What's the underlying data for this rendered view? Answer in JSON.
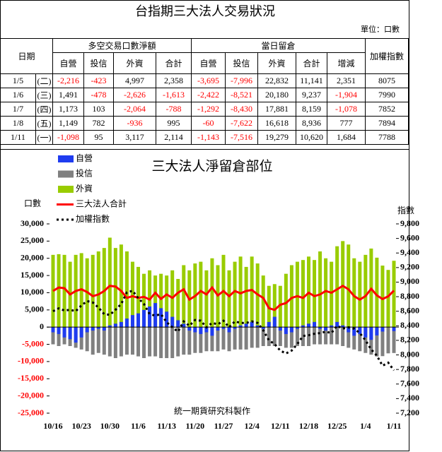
{
  "table": {
    "title": "台指期三大法人交易狀況",
    "unit": "單位：口數",
    "date_header": "日期",
    "group1": "多空交易口數淨額",
    "group2": "當日留倉",
    "index_header": "加權指數",
    "sub1": [
      "自營",
      "投信",
      "外資",
      "合計"
    ],
    "sub2": [
      "自營",
      "投信",
      "外資",
      "合計",
      "增減"
    ],
    "rows": [
      [
        "1/5",
        "(二)",
        "-2,216",
        "-423",
        "4,997",
        "2,358",
        "-3,695",
        "-7,996",
        "22,832",
        "11,141",
        "2,351",
        "8075"
      ],
      [
        "1/6",
        "(三)",
        "1,491",
        "-478",
        "-2,626",
        "-1,613",
        "-2,422",
        "-8,521",
        "20,180",
        "9,237",
        "-1,904",
        "7990"
      ],
      [
        "1/7",
        "(四)",
        "1,173",
        "103",
        "-2,064",
        "-788",
        "-1,292",
        "-8,430",
        "17,881",
        "8,159",
        "-1,078",
        "7852"
      ],
      [
        "1/8",
        "(五)",
        "1,149",
        "782",
        "-936",
        "995",
        "-60",
        "-7,622",
        "16,618",
        "8,936",
        "777",
        "7894"
      ],
      [
        "1/11",
        "(一)",
        "-1,098",
        "95",
        "3,117",
        "2,114",
        "-1,143",
        "-7,516",
        "19,279",
        "10,620",
        "1,684",
        "7788"
      ]
    ]
  },
  "chart_data": {
    "type": "combo",
    "title": "三大法人淨留倉部位",
    "y_label": "口數",
    "y2_label": "指數",
    "footer": "統一期貨研究科製作",
    "categories": [
      "10/16",
      null,
      null,
      null,
      null,
      "10/23",
      null,
      null,
      null,
      null,
      "10/30",
      null,
      null,
      null,
      null,
      "11/6",
      null,
      null,
      null,
      null,
      "11/13",
      null,
      null,
      null,
      null,
      "11/20",
      null,
      null,
      null,
      null,
      "11/27",
      null,
      null,
      null,
      null,
      "12/4",
      null,
      null,
      null,
      null,
      "12/11",
      null,
      null,
      null,
      null,
      "12/18",
      null,
      null,
      null,
      null,
      "12/25",
      null,
      null,
      null,
      null,
      "1/4",
      null,
      null,
      null,
      null,
      "1/11"
    ],
    "series": [
      {
        "name": "自營",
        "type": "bar",
        "color": "#1f3cf0",
        "values": [
          -1500,
          -2000,
          -3000,
          -3500,
          -4500,
          -3000,
          -1500,
          -1000,
          -500,
          -1000,
          500,
          1000,
          1500,
          2500,
          3500,
          4000,
          5000,
          6000,
          7000,
          5500,
          4500,
          3000,
          2000,
          1000,
          -1000,
          -1500,
          -2000,
          -1500,
          -2500,
          -1000,
          -500,
          -1500,
          -500,
          500,
          1000,
          1500,
          500,
          -500,
          1500,
          3000,
          -1000,
          -2000,
          -1500,
          -500,
          500,
          1000,
          1500,
          -500,
          -1000,
          500,
          1500,
          500,
          -1500,
          -2500,
          -2000,
          -3000,
          -3695,
          -2422,
          -1292,
          -60,
          -1143
        ]
      },
      {
        "name": "投信",
        "type": "bar",
        "color": "#808080",
        "values": [
          -5000,
          -5500,
          -5000,
          -5500,
          -6000,
          -6500,
          -7000,
          -8000,
          -7500,
          -8000,
          -8500,
          -9000,
          -8500,
          -8000,
          -8000,
          -8500,
          -9000,
          -8500,
          -8500,
          -9000,
          -9000,
          -9000,
          -8500,
          -8000,
          -8000,
          -7500,
          -7500,
          -7000,
          -7000,
          -7000,
          -6500,
          -7000,
          -6500,
          -6500,
          -6500,
          -6000,
          -6000,
          -5500,
          -5500,
          -5500,
          -5500,
          -6000,
          -6000,
          -5500,
          -5500,
          -5500,
          -5000,
          -5000,
          -5000,
          -5000,
          -5000,
          -5500,
          -6000,
          -6500,
          -7000,
          -7500,
          -7996,
          -8521,
          -8430,
          -7622,
          -7516
        ]
      },
      {
        "name": "外資",
        "type": "bar",
        "color": "#99cc00",
        "values": [
          21000,
          21200,
          21000,
          19000,
          21000,
          21500,
          20000,
          21000,
          22000,
          23000,
          26000,
          23000,
          24000,
          22000,
          19000,
          17500,
          15500,
          16500,
          15000,
          15500,
          15000,
          16500,
          14000,
          18000,
          16500,
          18500,
          19000,
          16500,
          20000,
          18000,
          21000,
          16500,
          19000,
          20500,
          17500,
          20500,
          18500,
          15000,
          12000,
          12500,
          12000,
          15500,
          18000,
          19000,
          19500,
          20500,
          19500,
          22000,
          20000,
          19000,
          23500,
          25000,
          24000,
          20000,
          19000,
          21000,
          22832,
          20180,
          17881,
          16618,
          19279
        ]
      },
      {
        "name": "三大法人合計",
        "type": "line",
        "color": "#ff0000",
        "values": [
          10500,
          11500,
          11300,
          9500,
          10500,
          11000,
          10200,
          9000,
          9500,
          10500,
          12000,
          11800,
          10500,
          8500,
          9000,
          8500,
          8800,
          8000,
          10000,
          8200,
          9500,
          8500,
          10000,
          11000,
          8000,
          9000,
          10500,
          9500,
          11500,
          9200,
          10500,
          9000,
          10500,
          9800,
          10500,
          10800,
          9500,
          8500,
          5500,
          5000,
          6500,
          7000,
          8500,
          9000,
          8500,
          10000,
          9000,
          9500,
          10500,
          10000,
          11000,
          12000,
          11000,
          9000,
          8000,
          9000,
          11141,
          9237,
          8159,
          8936,
          10620
        ]
      },
      {
        "name": "加權指數",
        "type": "line",
        "axis": "y2",
        "color": "#000000",
        "dashed": true,
        "values": [
          8600,
          8640,
          8610,
          8620,
          8600,
          8680,
          8740,
          8720,
          8650,
          8560,
          8550,
          8620,
          8700,
          8860,
          8880,
          8780,
          8700,
          8560,
          8540,
          8560,
          8450,
          8380,
          8320,
          8460,
          8400,
          8480,
          8470,
          8380,
          8440,
          8420,
          8470,
          8380,
          8460,
          8440,
          8440,
          8460,
          8440,
          8340,
          8200,
          8150,
          8060,
          8020,
          8060,
          8150,
          8260,
          8270,
          8290,
          8300,
          8320,
          8300,
          8400,
          8360,
          8380,
          8360,
          8300,
          8200,
          8075,
          7990,
          7852,
          7894,
          7788
        ]
      }
    ],
    "ylim": [
      -25000,
      30000
    ],
    "yticks": [
      {
        "value": -25000,
        "label": "-25,000"
      },
      {
        "value": -20000,
        "label": "-20,000"
      },
      {
        "value": -15000,
        "label": "-15,000"
      },
      {
        "value": -10000,
        "label": "-10,000"
      },
      {
        "value": -5000,
        "label": "-5,000"
      },
      0,
      {
        "value": 5000,
        "label": "5,000"
      },
      {
        "value": 10000,
        "label": "10,000"
      },
      {
        "value": 15000,
        "label": "15,000"
      },
      {
        "value": 20000,
        "label": "20,000"
      },
      {
        "value": 25000,
        "label": "25,000"
      },
      {
        "value": 30000,
        "label": "30,000"
      }
    ],
    "y2lim": [
      7200,
      9800
    ],
    "y2ticks": [
      {
        "value": 7200,
        "label": "7,200"
      },
      {
        "value": 7400,
        "label": "7,400"
      },
      {
        "value": 7600,
        "label": "7,600"
      },
      {
        "value": 7800,
        "label": "7,800"
      },
      {
        "value": 8000,
        "label": "8,000"
      },
      {
        "value": 8200,
        "label": "8,200"
      },
      {
        "value": 8400,
        "label": "8,400"
      },
      {
        "value": 8600,
        "label": "8,600"
      },
      {
        "value": 8800,
        "label": "8,800"
      },
      {
        "value": 9000,
        "label": "9,000"
      },
      {
        "value": 9200,
        "label": "9,200"
      },
      {
        "value": 9400,
        "label": "9,400"
      },
      {
        "value": 9600,
        "label": "9,600"
      },
      {
        "value": 9800,
        "label": "9,800"
      }
    ],
    "negative_color": "#ff0000",
    "grid": false
  }
}
